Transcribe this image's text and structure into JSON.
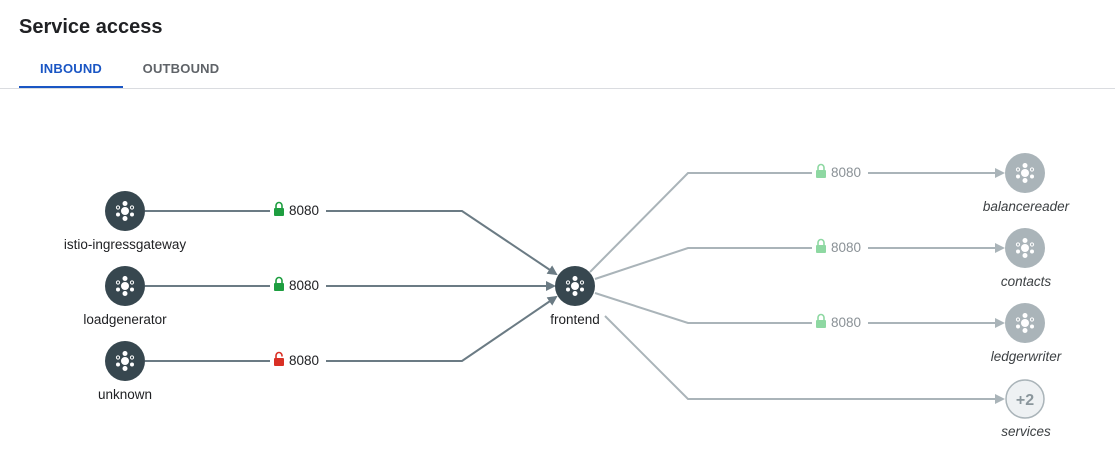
{
  "page": {
    "title": "Service access"
  },
  "tabs": [
    {
      "label": "INBOUND",
      "active": true
    },
    {
      "label": "OUTBOUND",
      "active": false
    }
  ],
  "colors": {
    "active_tab": "#1a56c4",
    "node_dark": "#37474f",
    "node_faded": "#aab4b9",
    "edge_dark": "#6b7b84",
    "edge_faded": "#aab4b9",
    "lock_secure": "#1e9e40",
    "lock_secure_faded": "#8ed8a2",
    "lock_insecure": "#d93025"
  },
  "graph": {
    "center": {
      "label": "frontend",
      "icon": "service-node-icon"
    },
    "inbound": [
      {
        "label": "istio-ingressgateway",
        "port": "8080",
        "lock": "locked",
        "icon": "service-node-icon"
      },
      {
        "label": "loadgenerator",
        "port": "8080",
        "lock": "locked",
        "icon": "service-node-icon"
      },
      {
        "label": "unknown",
        "port": "8080",
        "lock": "unlocked",
        "icon": "service-node-icon"
      }
    ],
    "outbound": [
      {
        "label": "balancereader",
        "port": "8080",
        "lock": "locked",
        "icon": "service-node-icon"
      },
      {
        "label": "contacts",
        "port": "8080",
        "lock": "locked",
        "icon": "service-node-icon"
      },
      {
        "label": "ledgerwriter",
        "port": "8080",
        "lock": "locked",
        "icon": "service-node-icon"
      },
      {
        "label": "services",
        "count_badge": "+2"
      }
    ]
  }
}
